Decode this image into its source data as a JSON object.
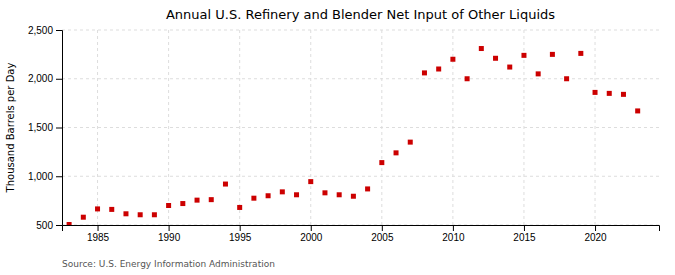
{
  "chart_data": {
    "type": "scatter",
    "title": "Annual U.S. Refinery and Blender Net Input of Other Liquids",
    "ylabel": "Thousand Barrels per Day",
    "source": "Source: U.S. Energy Information Administration",
    "x": [
      1983,
      1984,
      1985,
      1986,
      1987,
      1988,
      1989,
      1990,
      1991,
      1992,
      1993,
      1994,
      1995,
      1996,
      1997,
      1998,
      1999,
      2000,
      2001,
      2002,
      2003,
      2004,
      2005,
      2006,
      2007,
      2008,
      2009,
      2010,
      2011,
      2012,
      2013,
      2014,
      2015,
      2016,
      2017,
      2018,
      2019,
      2020,
      2021,
      2022,
      2023
    ],
    "values": [
      505,
      580,
      665,
      660,
      615,
      605,
      605,
      700,
      720,
      755,
      760,
      920,
      680,
      775,
      800,
      840,
      810,
      945,
      830,
      810,
      795,
      870,
      1140,
      1240,
      1350,
      2060,
      2100,
      2200,
      2000,
      2310,
      2210,
      2120,
      2240,
      2050,
      2250,
      2000,
      2260,
      1860,
      1850,
      1840,
      1670
    ],
    "color": "#cc0000",
    "marker": "square",
    "xlim": [
      1982.5,
      2024.5
    ],
    "xticks": [
      1985,
      1990,
      1995,
      2000,
      2005,
      2010,
      2015,
      2020
    ],
    "ylim": [
      500,
      2500
    ],
    "yticks": [
      500,
      {
        "value": 1000,
        "label": "1,000"
      },
      {
        "value": 1500,
        "label": "1,500"
      },
      {
        "value": 2000,
        "label": "2,000"
      },
      {
        "value": 2500,
        "label": "2,500"
      }
    ],
    "grid": true
  }
}
